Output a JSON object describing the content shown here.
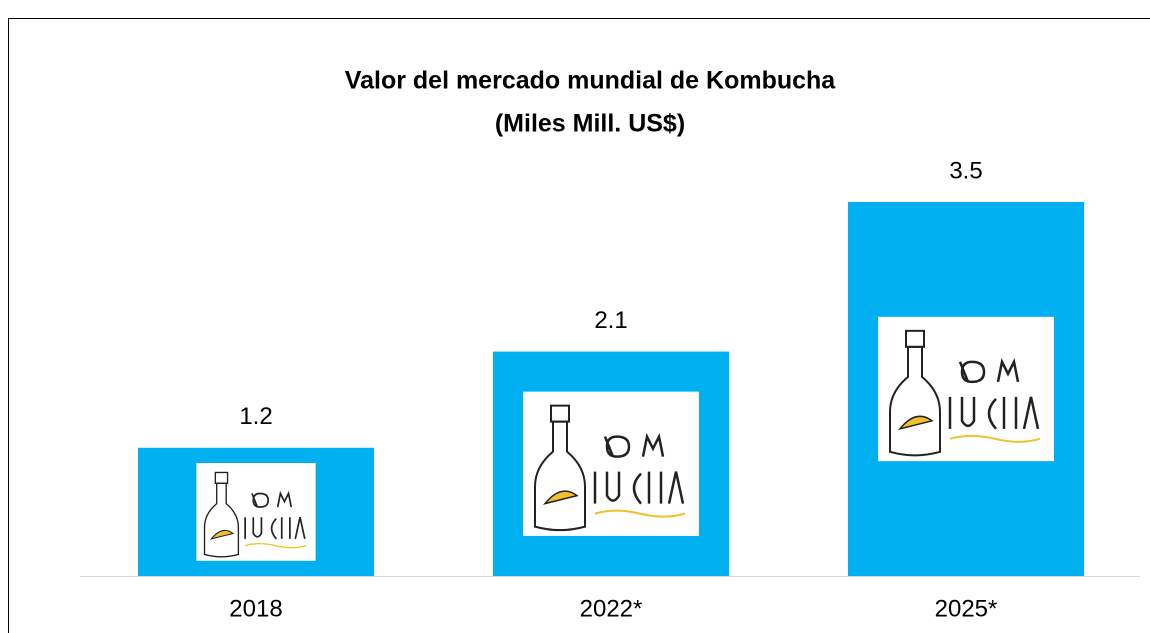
{
  "chart_data": {
    "type": "bar",
    "title": "Valor del mercado mundial de Kombucha",
    "subtitle": "(Miles Mill. US$)",
    "categories": [
      "2018",
      "2022*",
      "2025*"
    ],
    "values": [
      1.2,
      2.1,
      3.5
    ],
    "color": "#00b0f0"
  }
}
